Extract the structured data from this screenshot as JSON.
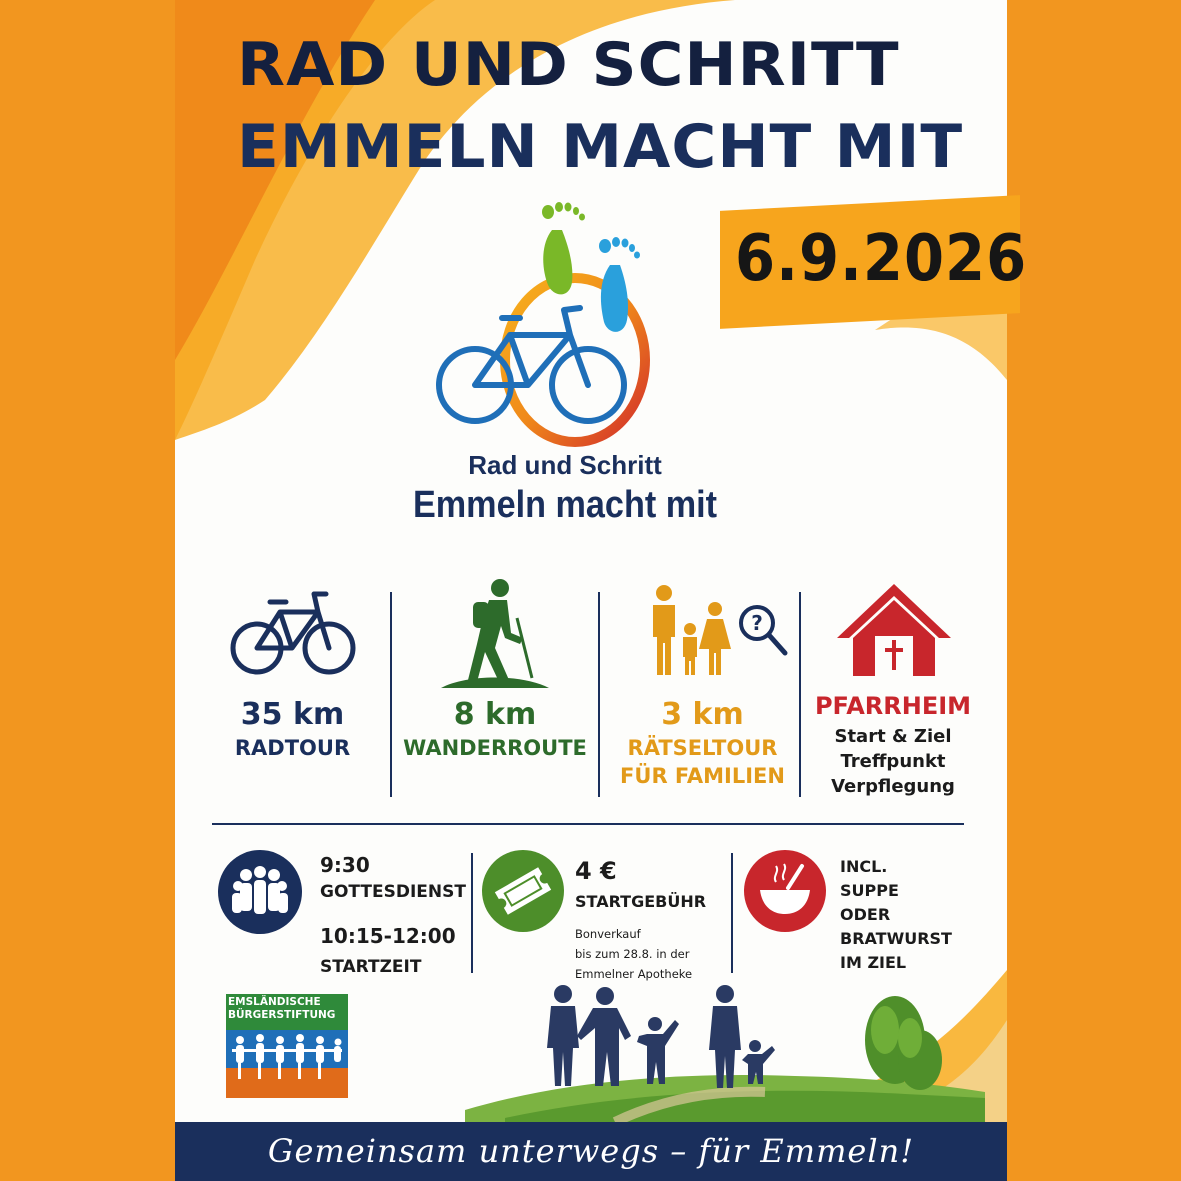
{
  "title": {
    "line1": "RAD UND SCHRITT",
    "line2": "EMMELN MACHT MIT"
  },
  "date": "6.9.2026",
  "logo": {
    "line1": "Rad und Schritt",
    "line2": "Emmeln macht mit"
  },
  "columns": [
    {
      "value": "35 km",
      "label": "RADTOUR",
      "icon": "bicycle-icon",
      "color": "#1a2f5c"
    },
    {
      "value": "8 km",
      "label": "WANDERROUTE",
      "icon": "hiker-icon",
      "color": "#2d6b2b"
    },
    {
      "value": "3 km",
      "label1": "RÄTSELTOUR",
      "label2": "FÜR FAMILIEN",
      "icon": "family-puzzle-icon",
      "color": "#e29a19"
    },
    {
      "title": "PFARRHEIM",
      "line1": "Start & Ziel",
      "line2": "Treffpunkt",
      "line3": "Verpflegung",
      "icon": "church-house-icon",
      "color": "#c8262c"
    }
  ],
  "info": {
    "service_time": "9:30",
    "service_label": "GOTTESDIENST",
    "start_time": "10:15-12:00",
    "start_label": "STARTZEIT",
    "fee": "4 €",
    "fee_label": "STARTGEBÜHR",
    "fee_note1": "Bonverkauf",
    "fee_note2": "bis zum 28.8. in der",
    "fee_note3": "Emmelner Apotheke",
    "food1": "INCL.",
    "food2": "SUPPE",
    "food3": "ODER",
    "food4": "BRATWURST",
    "food5": "IM ZIEL"
  },
  "sponsor": {
    "line1": "EMSLÄNDISCHE",
    "line2": "BÜRGERSTIFTUNG"
  },
  "footer": "Gemeinsam unterwegs – für Emmeln!",
  "colors": {
    "background": "#f2961f",
    "navy": "#1a2f5c",
    "green": "#2d6b2b",
    "orange": "#e29a19",
    "red": "#c8262c"
  }
}
